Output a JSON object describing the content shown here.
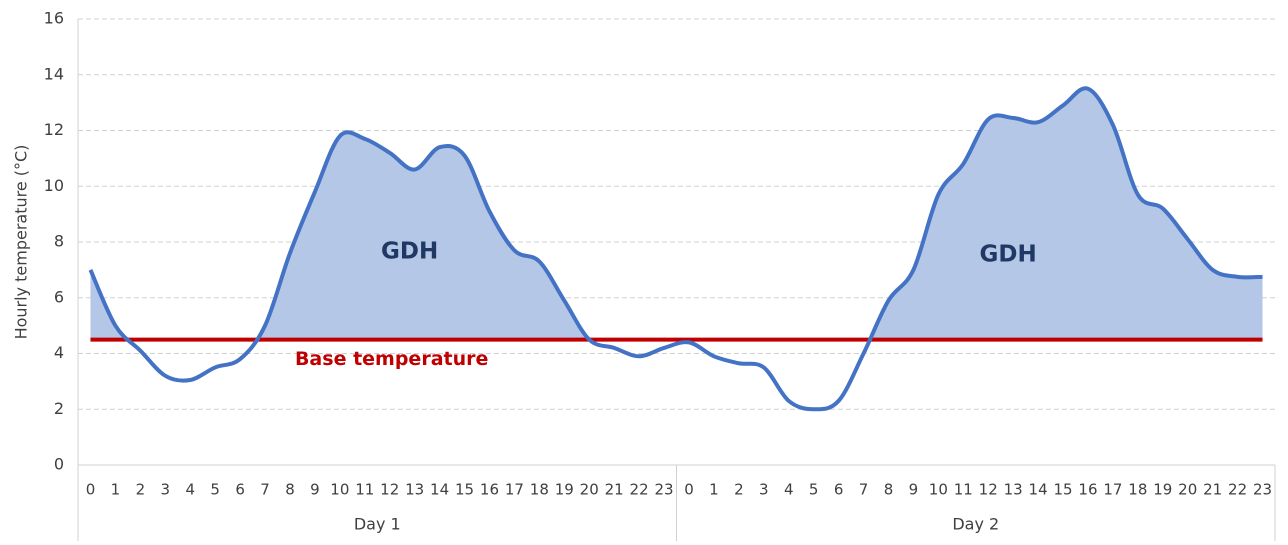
{
  "chart_data": {
    "type": "line",
    "y_label": "Hourly temperature (°C)",
    "categories": [
      "0",
      "1",
      "2",
      "3",
      "4",
      "5",
      "6",
      "7",
      "8",
      "9",
      "10",
      "11",
      "12",
      "13",
      "14",
      "15",
      "16",
      "17",
      "18",
      "19",
      "20",
      "21",
      "22",
      "23",
      "0",
      "1",
      "2",
      "3",
      "4",
      "5",
      "6",
      "7",
      "8",
      "9",
      "10",
      "11",
      "12",
      "13",
      "14",
      "15",
      "16",
      "17",
      "18",
      "19",
      "20",
      "21",
      "22",
      "23"
    ],
    "groups": [
      "Day 1",
      "Day 2"
    ],
    "series": [
      {
        "color": "#4472c4",
        "area_color": "#b4c7e7",
        "values": [
          7.0,
          5.0,
          4.1,
          3.2,
          3.05,
          3.5,
          3.8,
          5.0,
          7.6,
          9.8,
          11.8,
          11.7,
          11.2,
          10.6,
          11.4,
          11.1,
          9.1,
          7.7,
          7.3,
          5.9,
          4.5,
          4.2,
          3.9,
          4.2,
          4.4,
          3.9,
          3.65,
          3.5,
          2.3,
          2.0,
          2.3,
          4.0,
          5.9,
          7.0,
          9.7,
          10.8,
          12.4,
          12.45,
          12.3,
          12.9,
          13.5,
          12.2,
          9.7,
          9.2,
          8.1,
          7.0,
          6.75,
          6.75
        ]
      }
    ],
    "base_value": 4.5,
    "base_label": "Base temperature",
    "base_color": "#c00000",
    "annotations": [
      "GDH",
      "GDH"
    ],
    "annotation_color": "#1f3864",
    "ylim": [
      0,
      16
    ],
    "yticks": [
      0,
      2,
      4,
      6,
      8,
      10,
      12,
      14,
      16
    ],
    "grid": true
  }
}
